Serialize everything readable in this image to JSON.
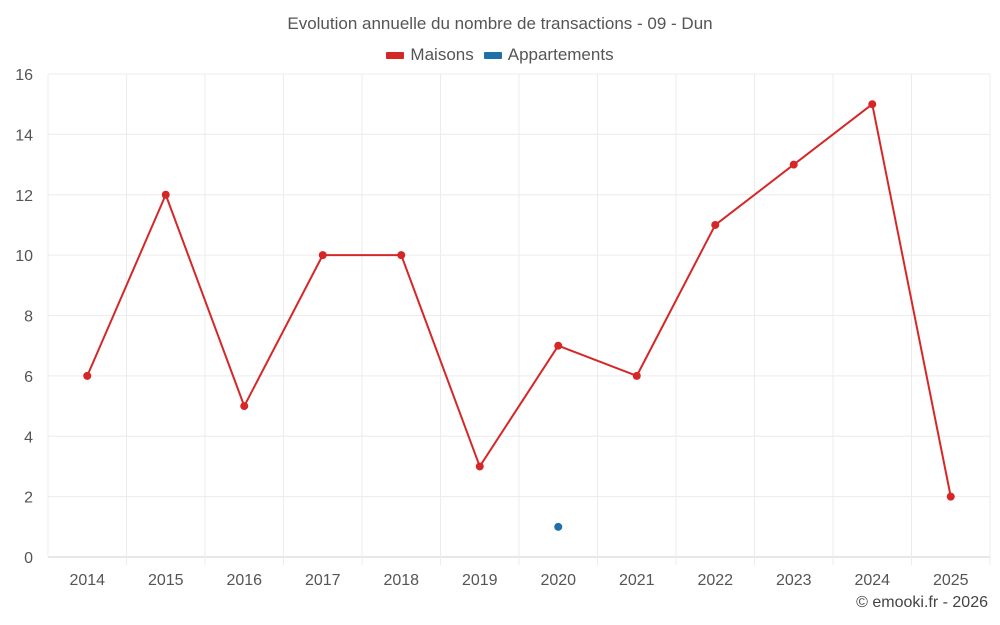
{
  "chart_data": {
    "type": "line",
    "title": "Evolution annuelle du nombre de transactions - 09 - Dun",
    "categories": [
      "2014",
      "2015",
      "2016",
      "2017",
      "2018",
      "2019",
      "2020",
      "2021",
      "2022",
      "2023",
      "2024",
      "2025"
    ],
    "series": [
      {
        "name": "Maisons",
        "color": "#d62728",
        "values": [
          6,
          12,
          5,
          10,
          10,
          3,
          7,
          6,
          11,
          13,
          15,
          2
        ]
      },
      {
        "name": "Appartements",
        "color": "#1f6fa8",
        "values": [
          null,
          null,
          null,
          null,
          null,
          null,
          1,
          null,
          null,
          null,
          null,
          null
        ]
      }
    ],
    "ylim": [
      0,
      16
    ],
    "yticks": [
      0,
      2,
      4,
      6,
      8,
      10,
      12,
      14,
      16
    ],
    "xlabel": "",
    "ylabel": "",
    "grid": true,
    "legend": "top-center"
  },
  "footer": {
    "credit": "© emooki.fr - 2026"
  }
}
